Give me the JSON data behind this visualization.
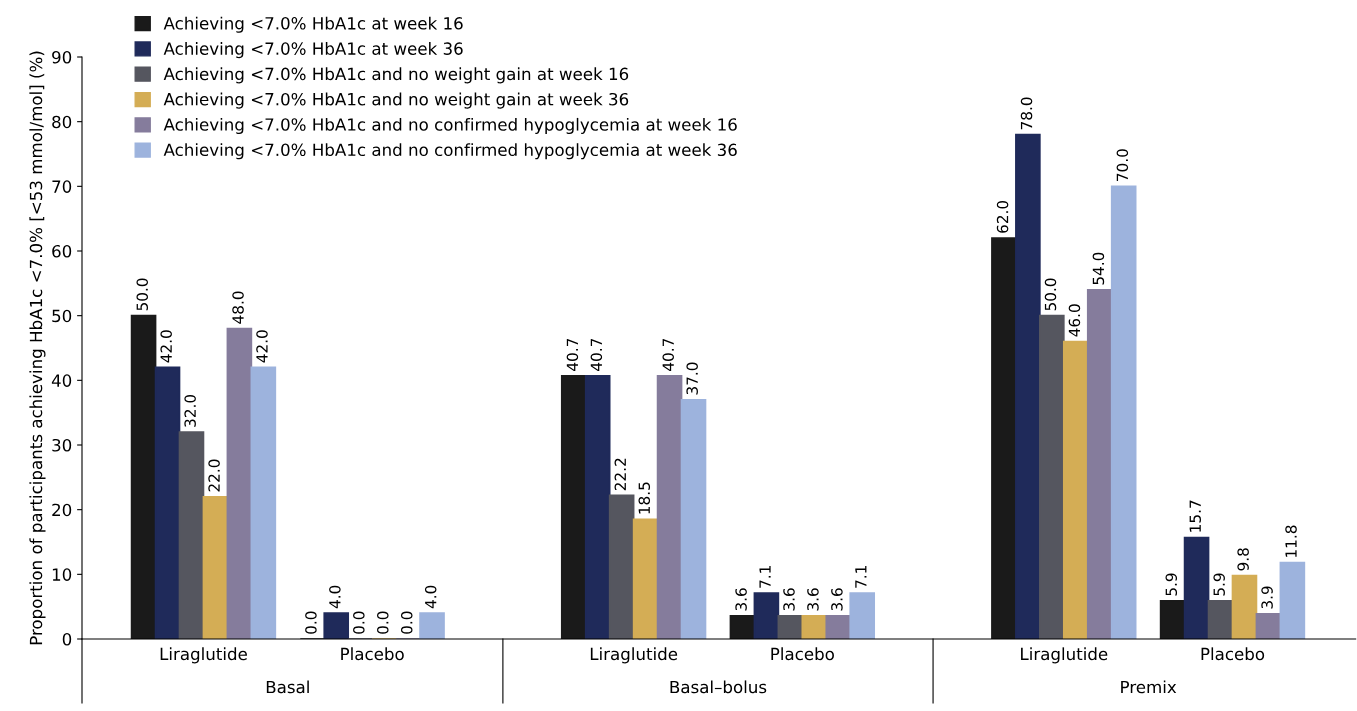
{
  "chart_data": {
    "type": "bar",
    "ylabel": "Proportion of participants achieving HbA1c <7.0% [<53 mmol/mol] (%)",
    "categories": [
      "Liraglutide",
      "Placebo",
      "Liraglutide",
      "Placebo",
      "Liraglutide",
      "Placebo"
    ],
    "annotations": [
      "Basal",
      "Basal–bolus",
      "Premix"
    ],
    "series": [
      {
        "name": "Achieving <7.0% HbA1c at week 16",
        "color": "#1a1a1a",
        "values": [
          50.0,
          0.0,
          40.7,
          3.6,
          62.0,
          5.9
        ],
        "value_labels": [
          "50.0",
          "0.0",
          "40.7",
          "3.6",
          "62.0",
          "5.9"
        ]
      },
      {
        "name": "Achieving <7.0% HbA1c at week 36",
        "color": "#1f2a5a",
        "values": [
          42.0,
          4.0,
          40.7,
          7.1,
          78.0,
          15.7
        ],
        "value_labels": [
          "42.0",
          "4.0",
          "40.7",
          "7.1",
          "78.0",
          "15.7"
        ]
      },
      {
        "name": "Achieving <7.0% HbA1c and no weight gain at week 16",
        "color": "#55565f",
        "values": [
          32.0,
          0.0,
          22.2,
          3.6,
          50.0,
          5.9
        ],
        "value_labels": [
          "32.0",
          "0.0",
          "22.2",
          "3.6",
          "50.0",
          "5.9"
        ]
      },
      {
        "name": "Achieving <7.0% HbA1c and no weight gain at week 36",
        "color": "#d4ad55",
        "values": [
          22.0,
          0.0,
          18.5,
          3.6,
          46.0,
          9.8
        ],
        "value_labels": [
          "22.0",
          "0.0",
          "18.5",
          "3.6",
          "46.0",
          "9.8"
        ]
      },
      {
        "name": "Achieving <7.0% HbA1c and no confirmed hypoglycemia at week 16",
        "color": "#857c9c",
        "values": [
          48.0,
          0.0,
          40.7,
          3.6,
          54.0,
          3.9
        ],
        "value_labels": [
          "48.0",
          "0.0",
          "40.7",
          "3.6",
          "54.0",
          "3.9"
        ]
      },
      {
        "name": "Achieving <7.0% HbA1c and no confirmed hypoglycemia at week 36",
        "color": "#9db3dd",
        "values": [
          42.0,
          4.0,
          37.0,
          7.1,
          70.0,
          11.8
        ],
        "value_labels": [
          "42.0",
          "4.0",
          "37.0",
          "7.1",
          "70.0",
          "11.8"
        ]
      }
    ],
    "ylim": [
      0,
      90
    ],
    "yticks": [
      0,
      10,
      20,
      30,
      40,
      50,
      60,
      70,
      80,
      90
    ],
    "grid": false,
    "legend": "top left"
  }
}
